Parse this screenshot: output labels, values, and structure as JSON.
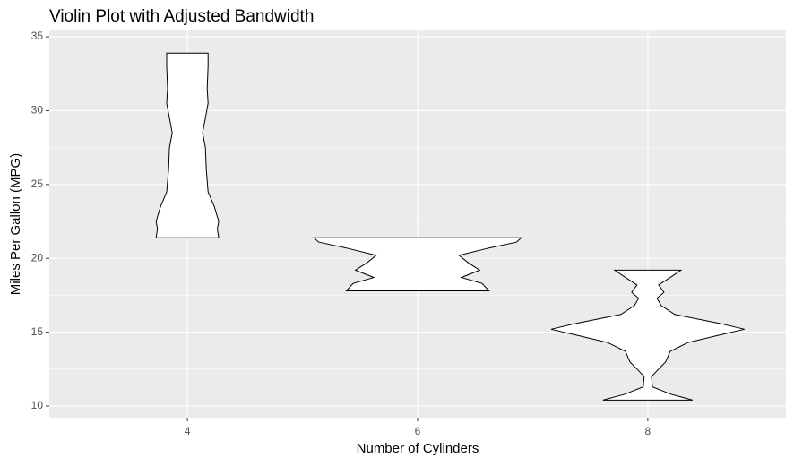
{
  "chart_data": {
    "type": "violin",
    "title": "Violin Plot with Adjusted Bandwidth",
    "xlabel": "Number of Cylinders",
    "ylabel": "Miles Per Gallon (MPG)",
    "categories": [
      "4",
      "6",
      "8"
    ],
    "violins": [
      {
        "y": [
          21.4,
          22.0,
          22.5,
          23.5,
          24.5,
          26,
          27.5,
          28.5,
          29.5,
          30.5,
          31.5,
          33,
          33.9
        ],
        "width": [
          0.136,
          0.13,
          0.136,
          0.117,
          0.09,
          0.082,
          0.078,
          0.066,
          0.078,
          0.09,
          0.086,
          0.09,
          0.09
        ]
      },
      {
        "y": [
          17.8,
          18.3,
          18.7,
          19.2,
          19.7,
          20.2,
          20.7,
          21.1,
          21.4
        ],
        "width": [
          0.31,
          0.28,
          0.19,
          0.27,
          0.22,
          0.18,
          0.31,
          0.43,
          0.45
        ]
      },
      {
        "y": [
          10.4,
          10.8,
          11.3,
          12,
          12.5,
          13,
          13.7,
          14.3,
          14.8,
          15.2,
          15.6,
          16.2,
          16.8,
          17.3,
          17.7,
          18.2,
          18.7,
          19.2
        ],
        "width": [
          0.195,
          0.1,
          0.02,
          0.016,
          0.047,
          0.078,
          0.097,
          0.175,
          0.31,
          0.42,
          0.31,
          0.117,
          0.058,
          0.04,
          0.07,
          0.047,
          0.097,
          0.144
        ]
      }
    ],
    "fill": "#ffffff",
    "stroke": "#000000",
    "background": "#ebebeb",
    "ylim": [
      9.21,
      35.49
    ],
    "yticks": [
      10,
      15,
      20,
      25,
      30,
      35
    ],
    "yminor": [
      12.5,
      17.5,
      22.5,
      27.5,
      32.5
    ],
    "grid": true
  }
}
